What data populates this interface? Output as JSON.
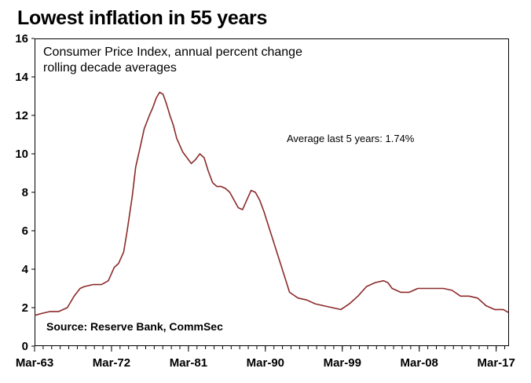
{
  "chart_data": {
    "type": "line",
    "title": "Lowest inflation in 55 years",
    "subtitle_line1": "Consumer Price Index, annual percent change",
    "subtitle_line2": "rolling decade averages",
    "annotation": "Average last 5 years: 1.74%",
    "source": "Source: Reserve Bank, CommSec",
    "xlabel": "",
    "ylabel": "",
    "ylim": [
      0,
      16
    ],
    "yticks": [
      "0",
      "2",
      "4",
      "6",
      "8",
      "10",
      "12",
      "14",
      "16"
    ],
    "xlim": [
      1963.17,
      2018.67
    ],
    "xticks": [
      {
        "label": "Mar-63",
        "year": 1963.17
      },
      {
        "label": "Mar-72",
        "year": 1972.17
      },
      {
        "label": "Mar-81",
        "year": 1981.17
      },
      {
        "label": "Mar-90",
        "year": 1990.17
      },
      {
        "label": "Mar-99",
        "year": 1999.17
      },
      {
        "label": "Mar-08",
        "year": 2008.17
      },
      {
        "label": "Mar-17",
        "year": 2017.17
      }
    ],
    "grid": false,
    "line_color": "#8b2a2a",
    "series": [
      {
        "name": "",
        "x": [
          1963.2,
          1964.0,
          1965.0,
          1966.0,
          1967.0,
          1967.8,
          1968.5,
          1969.0,
          1970.0,
          1971.0,
          1971.8,
          1972.5,
          1973.0,
          1973.6,
          1974.0,
          1974.6,
          1975.0,
          1975.6,
          1976.0,
          1976.6,
          1977.0,
          1977.4,
          1977.8,
          1978.2,
          1978.6,
          1979.0,
          1979.4,
          1979.8,
          1980.0,
          1980.5,
          1981.0,
          1981.5,
          1982.0,
          1982.5,
          1983.0,
          1983.5,
          1984.0,
          1984.5,
          1985.0,
          1985.5,
          1986.0,
          1986.5,
          1987.0,
          1987.5,
          1988.0,
          1988.5,
          1989.0,
          1989.5,
          1990.0,
          1990.5,
          1991.0,
          1991.5,
          1992.0,
          1992.5,
          1993.0,
          1994.0,
          1995.0,
          1996.0,
          1997.0,
          1998.0,
          1999.0,
          2000.0,
          2001.0,
          2002.0,
          2003.0,
          2004.0,
          2004.5,
          2005.0,
          2006.0,
          2007.0,
          2008.0,
          2009.0,
          2010.0,
          2011.0,
          2012.0,
          2013.0,
          2014.0,
          2015.0,
          2016.0,
          2017.0,
          2018.0,
          2018.6
        ],
        "y": [
          1.6,
          1.7,
          1.8,
          1.8,
          2.0,
          2.6,
          3.0,
          3.1,
          3.2,
          3.2,
          3.4,
          4.1,
          4.3,
          4.9,
          6.0,
          7.8,
          9.3,
          10.5,
          11.3,
          12.0,
          12.4,
          12.9,
          13.2,
          13.1,
          12.6,
          12.0,
          11.5,
          10.8,
          10.6,
          10.1,
          9.8,
          9.5,
          9.7,
          10.0,
          9.8,
          9.1,
          8.5,
          8.3,
          8.3,
          8.2,
          8.0,
          7.6,
          7.2,
          7.1,
          7.6,
          8.1,
          8.0,
          7.6,
          7.0,
          6.3,
          5.6,
          4.9,
          4.2,
          3.5,
          2.8,
          2.5,
          2.4,
          2.2,
          2.1,
          2.0,
          1.9,
          2.2,
          2.6,
          3.1,
          3.3,
          3.4,
          3.3,
          3.0,
          2.8,
          2.8,
          3.0,
          3.0,
          3.0,
          3.0,
          2.9,
          2.6,
          2.6,
          2.5,
          2.1,
          1.9,
          1.9,
          1.75
        ]
      }
    ]
  }
}
